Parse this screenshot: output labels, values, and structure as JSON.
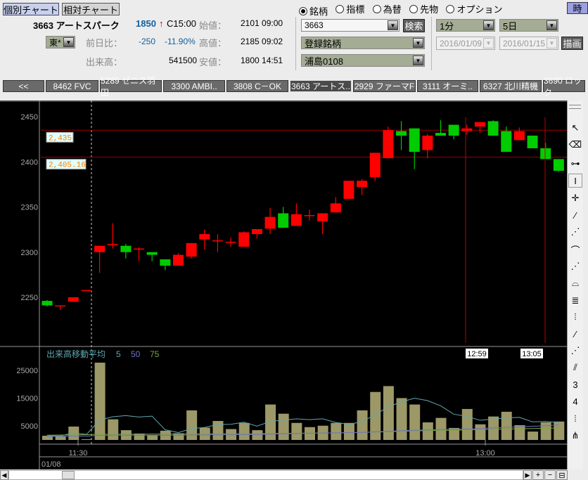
{
  "header": {
    "tabs": [
      {
        "label": "個別チャート",
        "active": true
      },
      {
        "label": "相対チャート",
        "active": false
      }
    ],
    "stock": {
      "code_name": "3663 アートスパーク",
      "price": "1850",
      "arrow": "↑",
      "close_time": "C15:00",
      "market": "東*",
      "change_label": "前日比：",
      "change": "-250",
      "change_pct": "-11.90%",
      "volume_label": "出来高：",
      "volume": "541500",
      "open_label": "始値：",
      "open": "2101 09:00",
      "high_label": "高値：",
      "high": "2185 09:02",
      "low_label": "安値：",
      "low": "1800 14:51"
    },
    "radios": [
      {
        "label": "銘柄",
        "checked": true
      },
      {
        "label": "指標",
        "checked": false
      },
      {
        "label": "為替",
        "checked": false
      },
      {
        "label": "先物",
        "checked": false
      },
      {
        "label": "オプション",
        "checked": false
      }
    ],
    "code_input": "3663",
    "search_button": "検索",
    "watchlist": "登録銘柄",
    "list_name": "浦島0108",
    "interval": "1分",
    "period": "5日",
    "date_from": "2016/01/09",
    "date_to": "2016/01/15",
    "draw_button": "描画",
    "time_button": "時"
  },
  "stock_tabs": [
    {
      "label": "<<"
    },
    {
      "label": "8462 FVC"
    },
    {
      "label": "5289 ゼニス羽田"
    },
    {
      "label": "3300 AMBI.."
    },
    {
      "label": "3808 C－OK"
    },
    {
      "label": "3663 アートス..",
      "active": true
    },
    {
      "label": "2929 ファーマF"
    },
    {
      "label": "3111 オーミ.."
    },
    {
      "label": "6327 北川精機"
    },
    {
      "label": "3690 ロック"
    }
  ],
  "toolbar": [
    "cursor",
    "eraser",
    "horizontal-line",
    "vertical-line",
    "crosshair",
    "trend-line",
    "fan",
    "arc",
    "fan-2",
    "arc-2",
    "retracement",
    "cycle-lines",
    "line-segment",
    "fan-3",
    "channel",
    "three-line",
    "four-line",
    "time-lines",
    "pitchfork"
  ],
  "colors": {
    "up": "#ff0000",
    "down": "#00cc00",
    "volume": "#9c9868",
    "ma5": "#5fa8b0",
    "ma50": "#7070c8",
    "ma75": "#78a838",
    "marker_line": "#c00000"
  },
  "chart_data": {
    "type": "candlestick",
    "price_ticks": [
      2450,
      2400,
      2350,
      2300,
      2250
    ],
    "volume_ticks": [
      "25000",
      "15000",
      "5000"
    ],
    "time_ticks": [
      "11:30",
      "13:00"
    ],
    "date_label": "01/08",
    "volume_legend": {
      "title": "出来高移動平均",
      "periods": [
        "5",
        "50",
        "75"
      ]
    },
    "horizontal_lines": [
      {
        "value": 2435,
        "label": "2,435"
      },
      {
        "value": 2405.16,
        "label": "2,405.16"
      }
    ],
    "vertical_markers": [
      "12:59",
      "13:05"
    ],
    "candles": [
      [
        2246,
        2247,
        2240,
        2241
      ],
      [
        2241,
        2241,
        2236,
        2241
      ],
      [
        2245,
        2250,
        2245,
        2250
      ],
      [
        2258,
        2258,
        2258,
        2258
      ],
      [
        2300,
        2307,
        2277,
        2307
      ],
      [
        2309,
        2332,
        2304,
        2309
      ],
      [
        2307,
        2309,
        2293,
        2300
      ],
      [
        2304,
        2305,
        2290,
        2304
      ],
      [
        2300,
        2300,
        2290,
        2297
      ],
      [
        2292,
        2292,
        2280,
        2285
      ],
      [
        2285,
        2299,
        2285,
        2297
      ],
      [
        2295,
        2310,
        2293,
        2310
      ],
      [
        2314,
        2325,
        2303,
        2320
      ],
      [
        2313,
        2320,
        2300,
        2313
      ],
      [
        2311.5,
        2316,
        2306,
        2311.5
      ],
      [
        2306,
        2323,
        2306,
        2322
      ],
      [
        2320,
        2325.5,
        2315,
        2325.5
      ],
      [
        2326,
        2349,
        2320,
        2339
      ],
      [
        2343,
        2350,
        2327,
        2327
      ],
      [
        2329,
        2354,
        2329,
        2342
      ],
      [
        2341,
        2347,
        2335,
        2341
      ],
      [
        2334,
        2343,
        2320,
        2343
      ],
      [
        2344,
        2361,
        2344,
        2354
      ],
      [
        2359,
        2379,
        2359,
        2379
      ],
      [
        2372,
        2381,
        2363,
        2379
      ],
      [
        2383,
        2410,
        2379,
        2410
      ],
      [
        2404,
        2439,
        2404,
        2435
      ],
      [
        2434,
        2445,
        2413,
        2429
      ],
      [
        2437,
        2437,
        2392,
        2411
      ],
      [
        2413,
        2431,
        2404,
        2429
      ],
      [
        2432,
        2446,
        2429,
        2429
      ],
      [
        2441,
        2441,
        2425,
        2429
      ],
      [
        2434,
        2441,
        2430,
        2437
      ],
      [
        2439,
        2444,
        2432,
        2444
      ],
      [
        2445,
        2446,
        2429,
        2429
      ],
      [
        2434,
        2439,
        2411,
        2411
      ],
      [
        2424,
        2438,
        2424,
        2434
      ],
      [
        2429,
        2429,
        2415,
        2415
      ],
      [
        2415,
        2421,
        2403,
        2403
      ],
      [
        2403,
        2403,
        2389,
        2390
      ]
    ],
    "volumes": [
      1500,
      1350,
      4800,
      250,
      27700,
      7400,
      3500,
      2300,
      1700,
      3300,
      2400,
      10600,
      4400,
      6800,
      3900,
      6100,
      3500,
      12700,
      9400,
      6100,
      4600,
      5100,
      6100,
      6100,
      10600,
      17200,
      19300,
      15000,
      12700,
      6300,
      7900,
      4300,
      11100,
      5600,
      8400,
      10100,
      5300,
      3000,
      6300,
      6600
    ],
    "ma50": [
      1300,
      1300,
      1350,
      1400,
      1600,
      1700,
      1700,
      1700,
      1700,
      1700,
      1700,
      1750,
      1800,
      1850,
      1850,
      1900,
      1900,
      2100,
      2200,
      2300,
      2400,
      2500,
      2550,
      2600,
      2700,
      2900,
      3100,
      3300,
      3500,
      3600,
      3700,
      3800,
      3900,
      4100,
      4300,
      4500,
      4700,
      4900,
      5100,
      5400
    ],
    "ma75": [
      1700,
      1750,
      1800,
      1900,
      2000,
      2050,
      2050,
      2050,
      2100,
      2100,
      2100,
      2150,
      2150,
      2200,
      2200,
      2250,
      2250,
      2300,
      2350,
      2400,
      2450,
      2500,
      2550,
      2600,
      2700,
      2800,
      2950,
      3100,
      3250,
      3350,
      3450,
      3500,
      3600,
      3700,
      3800,
      3900,
      4000,
      4100,
      4200,
      4300
    ]
  }
}
